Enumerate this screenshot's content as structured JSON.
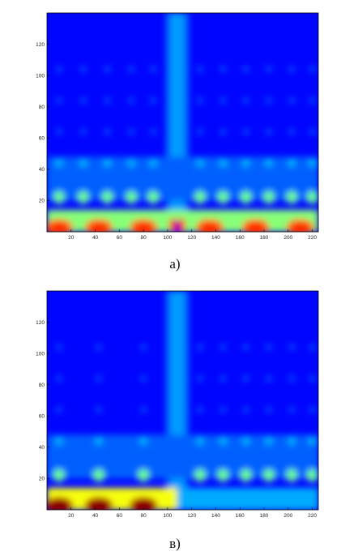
{
  "chart_data": [
    {
      "type": "heatmap",
      "caption": "а)",
      "colormap": "jet",
      "xlim": [
        0,
        225
      ],
      "ylim": [
        0,
        140
      ],
      "xticks": [
        20,
        40,
        60,
        80,
        100,
        120,
        140,
        160,
        180,
        200,
        220
      ],
      "yticks": [
        20,
        40,
        60,
        80,
        100,
        120
      ],
      "xtick_labels": [
        "20",
        "40",
        "60",
        "80",
        "100",
        "120",
        "140",
        "160",
        "180",
        "200",
        "220"
      ],
      "ytick_labels": [
        "20",
        "40",
        "60",
        "80",
        "100",
        "120"
      ],
      "title": "",
      "xlabel": "",
      "ylabel": "",
      "vertical_band_center": 108,
      "peak_columns": [
        10,
        43,
        80,
        135,
        173,
        210
      ],
      "blob_columns": [
        10,
        30,
        50,
        70,
        88,
        127,
        146,
        165,
        184,
        203,
        220
      ],
      "center_notch": true,
      "low_band_intensity_left": 0.78,
      "low_band_intensity_right": 0.78
    },
    {
      "type": "heatmap",
      "caption": "в)",
      "colormap": "jet",
      "xlim": [
        0,
        225
      ],
      "ylim": [
        0,
        140
      ],
      "xticks": [
        20,
        40,
        60,
        80,
        100,
        120,
        140,
        160,
        180,
        200,
        220
      ],
      "yticks": [
        20,
        40,
        60,
        80,
        100,
        120
      ],
      "xtick_labels": [
        "20",
        "40",
        "60",
        "80",
        "100",
        "120",
        "140",
        "160",
        "180",
        "200",
        "220"
      ],
      "ytick_labels": [
        "20",
        "40",
        "60",
        "80",
        "100",
        "120"
      ],
      "title": "",
      "xlabel": "",
      "ylabel": "",
      "vertical_band_center": 108,
      "peak_columns": [
        10,
        43,
        80
      ],
      "blob_columns": [
        10,
        43,
        80,
        127,
        146,
        165,
        184,
        203,
        220
      ],
      "center_notch": false,
      "low_band_intensity_left": 0.95,
      "low_band_intensity_right": 0.45
    }
  ]
}
